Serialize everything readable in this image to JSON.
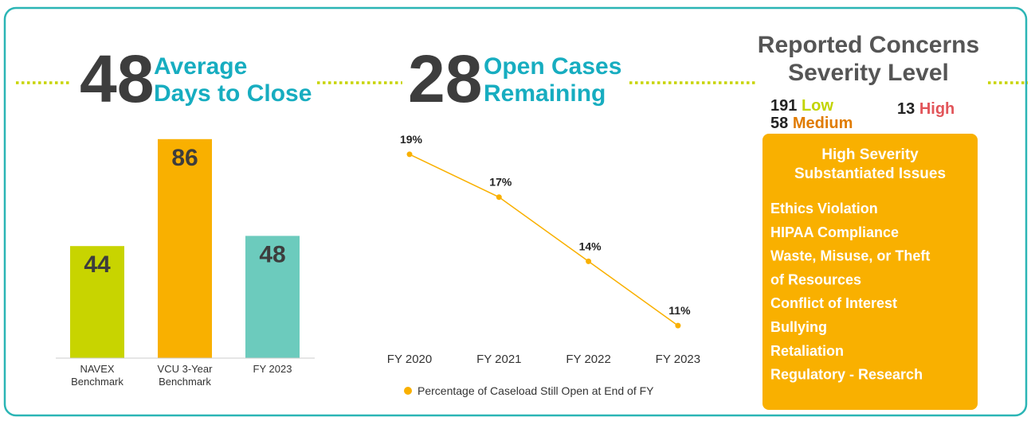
{
  "kpis": [
    {
      "value": 48,
      "label": "Average\nDays to Close"
    },
    {
      "value": 28,
      "label": "Open Cases\nRemaining"
    }
  ],
  "severity": {
    "title": "Reported Concerns\nSeverity Level",
    "levels": [
      {
        "count": 191,
        "name": "Low",
        "color": "#c2d400"
      },
      {
        "count": 58,
        "name": "Medium",
        "color": "#e07b00"
      },
      {
        "count": 13,
        "name": "High",
        "color": "#e2555a"
      }
    ]
  },
  "issues": {
    "title": "High Severity\nSubstantiated Issues",
    "items": [
      "Ethics Violation",
      "HIPAA Compliance",
      "Waste, Misuse, or Theft",
      "of Resources",
      "Conflict of Interest",
      "Bullying",
      "Retaliation",
      "Regulatory - Research"
    ]
  },
  "chart_data": [
    {
      "type": "bar",
      "categories": [
        "NAVEX\nBenchmark",
        "VCU 3-Year\nBenchmark",
        "FY 2023"
      ],
      "values": [
        44,
        86,
        48
      ],
      "colors": [
        "#c8d400",
        "#f9b000",
        "#6ccbbd"
      ],
      "ylim": [
        0,
        100
      ]
    },
    {
      "type": "line",
      "categories": [
        "FY 2020",
        "FY 2021",
        "FY 2022",
        "FY 2023"
      ],
      "series": [
        {
          "name": "Percentage of Caseload Still Open at End of FY",
          "color": "#f9b000",
          "values": [
            19,
            17,
            14,
            11
          ],
          "value_labels": [
            "19%",
            "17%",
            "14%",
            "11%"
          ]
        }
      ],
      "ylim": [
        10,
        20
      ]
    }
  ]
}
